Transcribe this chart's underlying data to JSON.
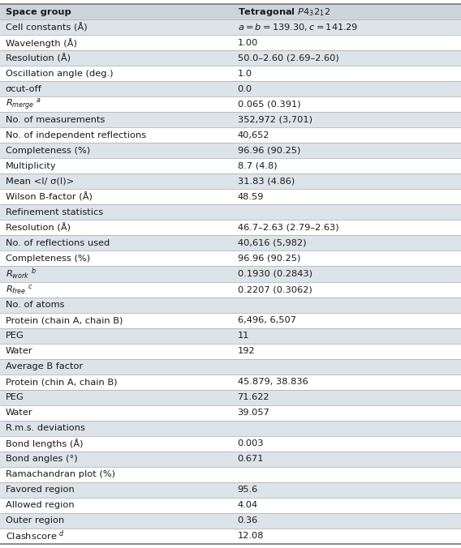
{
  "rows": [
    {
      "label": "Space group",
      "value": "Tetragonal $P4_32_12$",
      "bold_label": true,
      "bold_value": true,
      "section_header": false,
      "shaded": false
    },
    {
      "label": "Cell constants (Å)",
      "value": "$a = b = 139.30, c = 141.29$",
      "bold_label": false,
      "bold_value": false,
      "section_header": false,
      "shaded": true
    },
    {
      "label": "Wavelength (Å)",
      "value": "1.00",
      "bold_label": false,
      "bold_value": false,
      "section_header": false,
      "shaded": false
    },
    {
      "label": "Resolution (Å)",
      "value": "50.0–2.60 (2.69–2.60)",
      "bold_label": false,
      "bold_value": false,
      "section_header": false,
      "shaded": true
    },
    {
      "label": "Oscillation angle (deg.)",
      "value": "1.0",
      "bold_label": false,
      "bold_value": false,
      "section_header": false,
      "shaded": false
    },
    {
      "label": "σcut-off",
      "value": "0.0",
      "bold_label": false,
      "bold_value": false,
      "section_header": false,
      "shaded": true
    },
    {
      "label": "$R_{merge}$ $^{a}$",
      "value": "0.065 (0.391)",
      "bold_label": false,
      "bold_value": false,
      "section_header": false,
      "shaded": false
    },
    {
      "label": "No. of measurements",
      "value": "352,972 (3,701)",
      "bold_label": false,
      "bold_value": false,
      "section_header": false,
      "shaded": true
    },
    {
      "label": "No. of independent reflections",
      "value": "40,652",
      "bold_label": false,
      "bold_value": false,
      "section_header": false,
      "shaded": false
    },
    {
      "label": "Completeness (%)",
      "value": "96.96 (90.25)",
      "bold_label": false,
      "bold_value": false,
      "section_header": false,
      "shaded": true
    },
    {
      "label": "Multiplicity",
      "value": "8.7 (4.8)",
      "bold_label": false,
      "bold_value": false,
      "section_header": false,
      "shaded": false
    },
    {
      "label": "Mean <I/ σ(I)>",
      "value": "31.83 (4.86)",
      "bold_label": false,
      "bold_value": false,
      "section_header": false,
      "shaded": true
    },
    {
      "label": "Wilson B-factor (Å)",
      "value": "48.59",
      "bold_label": false,
      "bold_value": false,
      "section_header": false,
      "shaded": false
    },
    {
      "label": "Refinement statistics",
      "value": "",
      "bold_label": false,
      "bold_value": false,
      "section_header": true,
      "shaded": true
    },
    {
      "label": "Resolution (Å)",
      "value": "46.7–2.63 (2.79–2.63)",
      "bold_label": false,
      "bold_value": false,
      "section_header": false,
      "shaded": false
    },
    {
      "label": "No. of reflections used",
      "value": "40,616 (5,982)",
      "bold_label": false,
      "bold_value": false,
      "section_header": false,
      "shaded": true
    },
    {
      "label": "Completeness (%)",
      "value": "96.96 (90.25)",
      "bold_label": false,
      "bold_value": false,
      "section_header": false,
      "shaded": false
    },
    {
      "label": "$R_{work}$ $^{b}$",
      "value": "0.1930 (0.2843)",
      "bold_label": false,
      "bold_value": false,
      "section_header": false,
      "shaded": true
    },
    {
      "label": "$R_{free}$ $^{c}$",
      "value": "0.2207 (0.3062)",
      "bold_label": false,
      "bold_value": false,
      "section_header": false,
      "shaded": false
    },
    {
      "label": "No. of atoms",
      "value": "",
      "bold_label": false,
      "bold_value": false,
      "section_header": true,
      "shaded": true
    },
    {
      "label": "Protein (chain A, chain B)",
      "value": "6,496, 6,507",
      "bold_label": false,
      "bold_value": false,
      "section_header": false,
      "shaded": false
    },
    {
      "label": "PEG",
      "value": "11",
      "bold_label": false,
      "bold_value": false,
      "section_header": false,
      "shaded": true
    },
    {
      "label": "Water",
      "value": "192",
      "bold_label": false,
      "bold_value": false,
      "section_header": false,
      "shaded": false
    },
    {
      "label": "Average B factor",
      "value": "",
      "bold_label": false,
      "bold_value": false,
      "section_header": true,
      "shaded": true
    },
    {
      "label": "Protein (chin A, chain B)",
      "value": "45.879, 38.836",
      "bold_label": false,
      "bold_value": false,
      "section_header": false,
      "shaded": false
    },
    {
      "label": "PEG",
      "value": "71.622",
      "bold_label": false,
      "bold_value": false,
      "section_header": false,
      "shaded": true
    },
    {
      "label": "Water",
      "value": "39.057",
      "bold_label": false,
      "bold_value": false,
      "section_header": false,
      "shaded": false
    },
    {
      "label": "R.m.s. deviations",
      "value": "",
      "bold_label": false,
      "bold_value": false,
      "section_header": true,
      "shaded": true
    },
    {
      "label": "Bond lengths (Å)",
      "value": "0.003",
      "bold_label": false,
      "bold_value": false,
      "section_header": false,
      "shaded": false
    },
    {
      "label": "Bond angles (°)",
      "value": "0.671",
      "bold_label": false,
      "bold_value": false,
      "section_header": false,
      "shaded": true
    },
    {
      "label": "Ramachandran plot (%)",
      "value": "",
      "bold_label": false,
      "bold_value": false,
      "section_header": true,
      "shaded": false
    },
    {
      "label": "Favored region",
      "value": "95.6",
      "bold_label": false,
      "bold_value": false,
      "section_header": false,
      "shaded": true
    },
    {
      "label": "Allowed region",
      "value": "4.04",
      "bold_label": false,
      "bold_value": false,
      "section_header": false,
      "shaded": false
    },
    {
      "label": "Outer region",
      "value": "0.36",
      "bold_label": false,
      "bold_value": false,
      "section_header": false,
      "shaded": true
    },
    {
      "label": "Clashscore $^{d}$",
      "value": "12.08",
      "bold_label": false,
      "bold_value": false,
      "section_header": false,
      "shaded": false
    }
  ],
  "header_bg": "#cdd5dc",
  "shaded_bg": "#dce3e9",
  "unshaded_bg": "#ffffff",
  "text_color": "#1a1a1a",
  "font_size": 8.2,
  "fig_width": 5.68,
  "fig_height": 6.76,
  "col_split": 0.515
}
